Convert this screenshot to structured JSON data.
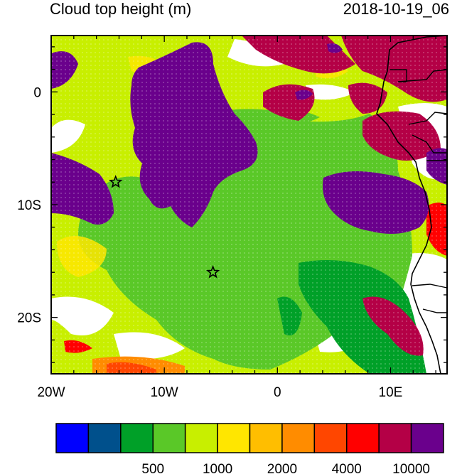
{
  "header": {
    "title": "Cloud top height (m)",
    "timestamp": "2018-10-19_06"
  },
  "map": {
    "projection": "lat-lon",
    "lon_range": [
      -20,
      15
    ],
    "lat_range": [
      -25,
      5
    ],
    "lon_ticks": [
      {
        "value": -20,
        "label": "20W"
      },
      {
        "value": -10,
        "label": "10W"
      },
      {
        "value": 0,
        "label": "0"
      },
      {
        "value": 10,
        "label": "10E"
      }
    ],
    "lat_ticks": [
      {
        "value": 0,
        "label": "0"
      },
      {
        "value": -10,
        "label": "10S"
      },
      {
        "value": -20,
        "label": "20S"
      }
    ],
    "markers": [
      {
        "name": "star-marker",
        "lon": -14.3,
        "lat": -8.0
      },
      {
        "name": "star-marker",
        "lon": -5.7,
        "lat": -16.0
      }
    ]
  },
  "colorbar": {
    "colors": [
      "#0000ff",
      "#00508c",
      "#00a028",
      "#5ac828",
      "#c8ef00",
      "#ffe600",
      "#ffbe00",
      "#ff8c00",
      "#ff4600",
      "#ff0000",
      "#b40046",
      "#6a008c"
    ],
    "labels": [
      {
        "between": 3,
        "text": "500"
      },
      {
        "between": 5,
        "text": "1000"
      },
      {
        "between": 7,
        "text": "2000"
      },
      {
        "between": 9,
        "text": "4000"
      },
      {
        "between": 11,
        "text": "10000"
      }
    ]
  }
}
